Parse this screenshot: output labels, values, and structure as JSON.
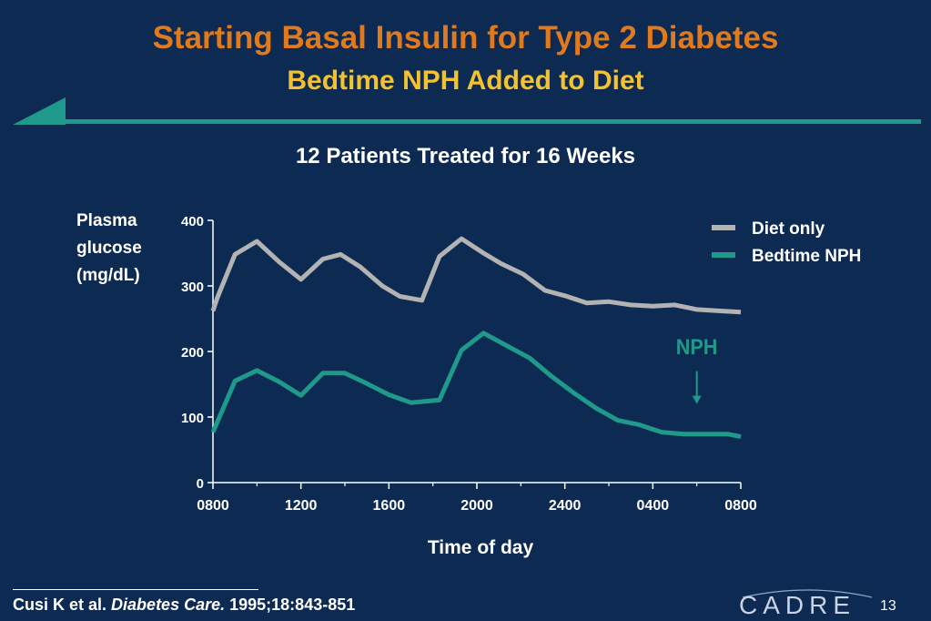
{
  "slide": {
    "title": "Starting Basal Insulin for Type 2 Diabetes",
    "subtitle": "Bedtime NPH Added to Diet",
    "chart_heading": "12 Patients Treated for 16 Weeks",
    "citation_authors": "Cusi K et al.",
    "citation_journal": "Diabetes Care.",
    "citation_ref": "1995;18:843-851",
    "logo_text": "CADRE",
    "page_number": "13"
  },
  "colors": {
    "background": "#0d2a52",
    "title": "#e07a1f",
    "subtitle": "#f2c230",
    "diet_only": "#b3b3b3",
    "bedtime_nph": "#1f9a8a"
  },
  "chart_data": {
    "type": "line",
    "title": "12 Patients Treated for 16 Weeks",
    "xlabel": "Time of day",
    "ylabel": [
      "Plasma",
      "glucose",
      "(mg/dL)"
    ],
    "ylim": [
      0,
      400
    ],
    "yticks": [
      0,
      100,
      200,
      300,
      400
    ],
    "x_range_hours": [
      0,
      24
    ],
    "xtick_labels": [
      "0800",
      "1200",
      "1600",
      "2000",
      "2400",
      "0400",
      "0800"
    ],
    "legend_position": "top-right",
    "grid": false,
    "series": [
      {
        "name": "Diet only",
        "color": "#b3b3b3",
        "x": [
          0,
          0.2,
          1,
          2,
          3,
          4,
          5,
          5.8,
          6.7,
          7.7,
          8.5,
          9.5,
          10.3,
          11.3,
          12.3,
          13.1,
          14.1,
          15.1,
          16,
          17,
          18,
          19,
          20,
          21,
          22,
          23,
          24
        ],
        "y": [
          262,
          282,
          348,
          368,
          337,
          310,
          341,
          348,
          329,
          300,
          284,
          278,
          345,
          372,
          350,
          334,
          318,
          293,
          285,
          274,
          276,
          271,
          269,
          271,
          264,
          262,
          260
        ]
      },
      {
        "name": "Bedtime NPH",
        "color": "#1f9a8a",
        "x": [
          0,
          1,
          2,
          3,
          4,
          5,
          6,
          7,
          8,
          9,
          10.3,
          11.3,
          12.3,
          13.4,
          14.4,
          15.4,
          16.4,
          17.4,
          18.4,
          19.4,
          20.4,
          21.4,
          22.4,
          23.4,
          24
        ],
        "y": [
          77,
          155,
          171,
          154,
          133,
          167,
          167,
          151,
          134,
          122,
          126,
          202,
          228,
          208,
          190,
          162,
          137,
          114,
          95,
          88,
          77,
          74,
          74,
          74,
          70
        ]
      }
    ],
    "annotation": {
      "text": "NPH",
      "x": 22.0,
      "y_label": 215,
      "arrow_from": 170,
      "arrow_to": 120
    }
  }
}
